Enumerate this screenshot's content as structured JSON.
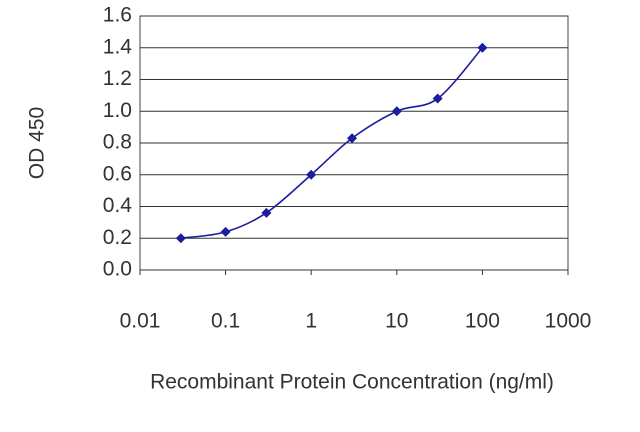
{
  "chart_data": {
    "type": "line",
    "x_label": "Recombinant Protein Concentration (ng/ml)",
    "y_label": "OD 450",
    "x_scale": "log",
    "x": [
      0.03,
      0.1,
      0.3,
      1,
      3,
      10,
      30,
      100
    ],
    "series": [
      {
        "color": "#1c1c9e",
        "values": [
          0.2,
          0.24,
          0.36,
          0.6,
          0.83,
          1.0,
          1.08,
          1.4
        ]
      }
    ],
    "xlim": [
      0.01,
      1000
    ],
    "xticks": [
      0.01,
      0.1,
      1,
      10,
      100,
      1000
    ],
    "ylim": [
      0,
      1.6
    ],
    "yticks": [
      {
        "value": 0,
        "label": "0.0"
      },
      0.2,
      0.4,
      0.6,
      0.8,
      {
        "value": 1,
        "label": "1.0"
      },
      1.2,
      1.4,
      1.6
    ],
    "grid": true
  }
}
